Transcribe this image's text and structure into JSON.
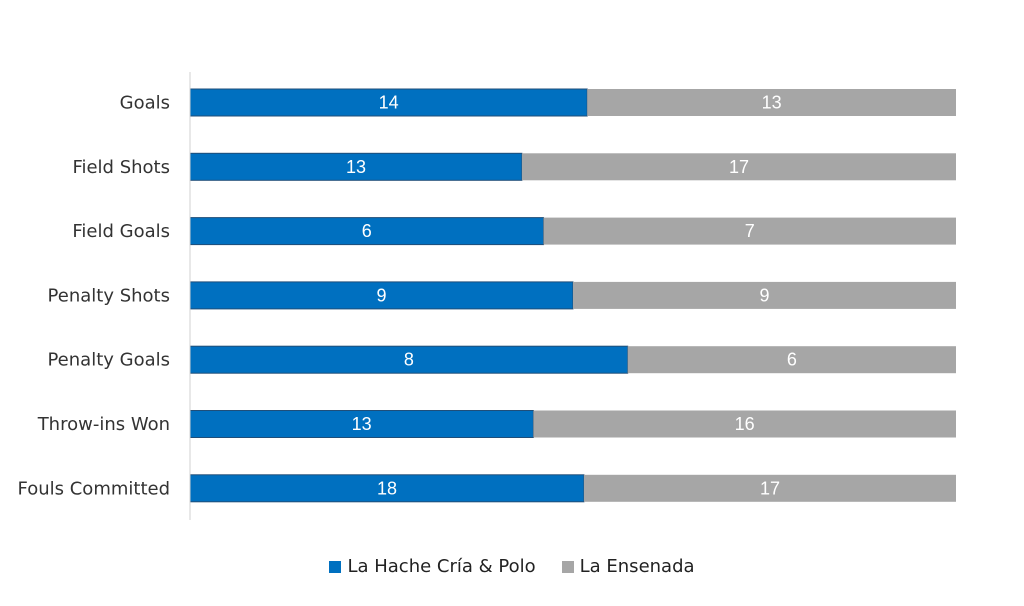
{
  "chart_data": {
    "type": "bar",
    "stacked": "percent",
    "orientation": "horizontal",
    "categories": [
      "Goals",
      "Field Shots",
      "Field Goals",
      "Penalty Shots",
      "Penalty Goals",
      "Throw-ins Won",
      "Fouls Committed"
    ],
    "series": [
      {
        "name": "La Hache Cría & Polo",
        "values": [
          14,
          13,
          6,
          9,
          8,
          13,
          18
        ],
        "color": "#0070C0"
      },
      {
        "name": "La Ensenada",
        "values": [
          13,
          17,
          7,
          9,
          6,
          16,
          17
        ],
        "color": "#A6A6A6"
      }
    ],
    "legend": "bottom",
    "grid": false
  }
}
